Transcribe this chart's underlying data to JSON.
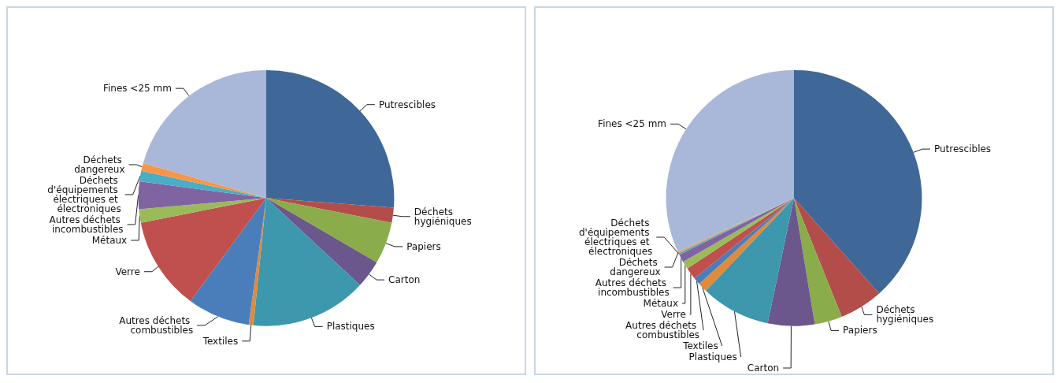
{
  "chart_data": [
    {
      "type": "pie",
      "categories": [
        "Putrescibles",
        "Déchets hygiéniques",
        "Papiers",
        "Carton",
        "Plastiques",
        "Textiles",
        "Autres déchets combustibles",
        "Verre",
        "Métaux",
        "Autres déchets incombustibles",
        "Déchets d'équipements électriques et électroniques",
        "Déchets dangereux",
        "Fines <25 mm"
      ],
      "values": [
        26.2,
        1.9,
        5.3,
        3.5,
        14.7,
        0.6,
        7.9,
        11.8,
        1.7,
        3.5,
        1.3,
        1.0,
        20.6
      ],
      "colors": [
        "#3f6898",
        "#b34d4a",
        "#8aac4a",
        "#6b578c",
        "#3d97ad",
        "#e08a3c",
        "#4a7ebb",
        "#c0504d",
        "#9bbb59",
        "#8064a2",
        "#4bacc6",
        "#f79646",
        "#a9b8d8"
      ]
    },
    {
      "type": "pie",
      "categories": [
        "Putrescibles",
        "Déchets hygiéniques",
        "Papiers",
        "Carton",
        "Plastiques",
        "Textiles",
        "Autres déchets combustibles",
        "Verre",
        "Métaux",
        "Autres déchets incombustibles",
        "Déchets d'équipements électriques et électroniques",
        "Déchets dangereux",
        "Fines <25 mm"
      ],
      "values": [
        38.4,
        5.5,
        3.5,
        5.9,
        8.8,
        1.2,
        0.9,
        1.5,
        1.0,
        1.0,
        0.2,
        0.2,
        31.9
      ],
      "colors": [
        "#3f6898",
        "#b34d4a",
        "#8aac4a",
        "#6b578c",
        "#3d97ad",
        "#e08a3c",
        "#4a7ebb",
        "#c0504d",
        "#9bbb59",
        "#8064a2",
        "#4bacc6",
        "#f79646",
        "#a9b8d8"
      ]
    }
  ]
}
